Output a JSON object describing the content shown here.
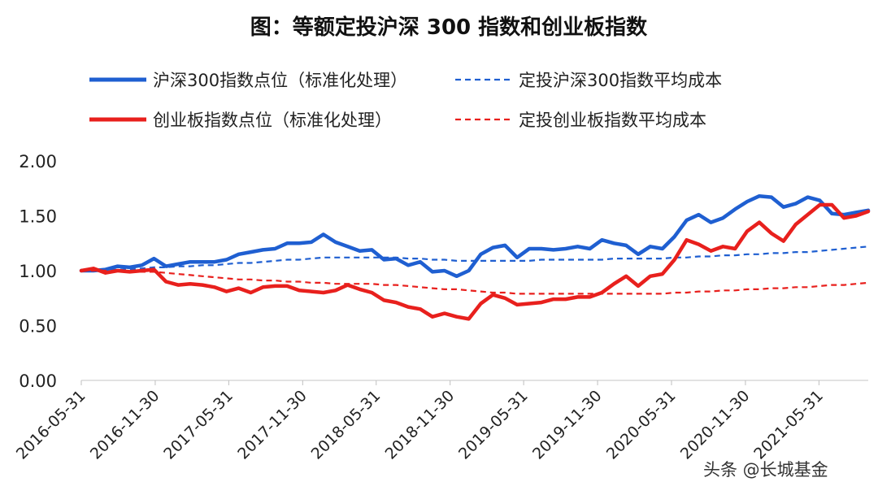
{
  "chart_data": {
    "type": "line",
    "title": "图：等额定投沪深 300 指数和创业板指数",
    "ylim": [
      0,
      2.0
    ],
    "yticks": [
      "2.00",
      "1.50",
      "1.00",
      "0.50",
      "0.00"
    ],
    "xticks": [
      "2016-05-31",
      "2016-11-30",
      "2017-05-31",
      "2017-11-30",
      "2018-05-31",
      "2018-11-30",
      "2019-05-31",
      "2019-11-30",
      "2020-05-31",
      "2020-11-30",
      "2021-05-31"
    ],
    "x_start": "2016-05-31",
    "x_end": "2021-09-30",
    "legend_position": "top",
    "series": [
      {
        "name": "沪深300指数点位（标准化处理）",
        "color": "#1f5fd1",
        "style": "solid",
        "values": [
          1.0,
          1.0,
          1.01,
          1.04,
          1.03,
          1.05,
          1.11,
          1.04,
          1.06,
          1.08,
          1.08,
          1.08,
          1.1,
          1.15,
          1.17,
          1.19,
          1.2,
          1.25,
          1.25,
          1.26,
          1.33,
          1.26,
          1.22,
          1.18,
          1.19,
          1.1,
          1.11,
          1.05,
          1.08,
          0.99,
          1.0,
          0.95,
          1.0,
          1.15,
          1.21,
          1.23,
          1.12,
          1.2,
          1.2,
          1.19,
          1.2,
          1.22,
          1.2,
          1.28,
          1.25,
          1.23,
          1.15,
          1.22,
          1.2,
          1.31,
          1.46,
          1.51,
          1.44,
          1.48,
          1.56,
          1.63,
          1.68,
          1.67,
          1.58,
          1.61,
          1.67,
          1.64,
          1.52,
          1.51,
          1.53,
          1.55
        ]
      },
      {
        "name": "定投沪深300指数平均成本",
        "color": "#1f5fd1",
        "style": "dashed",
        "values": [
          1.0,
          1.0,
          1.0,
          1.01,
          1.01,
          1.02,
          1.03,
          1.03,
          1.04,
          1.04,
          1.05,
          1.05,
          1.06,
          1.07,
          1.07,
          1.08,
          1.09,
          1.1,
          1.1,
          1.11,
          1.12,
          1.12,
          1.12,
          1.12,
          1.12,
          1.12,
          1.12,
          1.11,
          1.11,
          1.1,
          1.1,
          1.09,
          1.09,
          1.09,
          1.09,
          1.09,
          1.09,
          1.09,
          1.1,
          1.1,
          1.1,
          1.1,
          1.1,
          1.1,
          1.11,
          1.11,
          1.11,
          1.11,
          1.11,
          1.12,
          1.12,
          1.13,
          1.13,
          1.14,
          1.14,
          1.15,
          1.15,
          1.16,
          1.16,
          1.17,
          1.17,
          1.18,
          1.19,
          1.2,
          1.21,
          1.22
        ]
      },
      {
        "name": "创业板指数点位（标准化处理）",
        "color": "#e8201d",
        "style": "solid",
        "values": [
          1.0,
          1.02,
          0.98,
          1.0,
          0.99,
          1.0,
          1.01,
          0.9,
          0.87,
          0.88,
          0.87,
          0.85,
          0.81,
          0.84,
          0.8,
          0.85,
          0.86,
          0.86,
          0.82,
          0.81,
          0.8,
          0.82,
          0.87,
          0.83,
          0.8,
          0.73,
          0.71,
          0.67,
          0.65,
          0.58,
          0.61,
          0.58,
          0.56,
          0.7,
          0.78,
          0.75,
          0.69,
          0.7,
          0.71,
          0.74,
          0.74,
          0.76,
          0.76,
          0.8,
          0.88,
          0.95,
          0.86,
          0.95,
          0.97,
          1.1,
          1.28,
          1.24,
          1.18,
          1.22,
          1.2,
          1.36,
          1.44,
          1.34,
          1.27,
          1.42,
          1.51,
          1.6,
          1.6,
          1.48,
          1.5,
          1.54
        ]
      },
      {
        "name": "定投创业板指数平均成本",
        "color": "#e8201d",
        "style": "dashed",
        "values": [
          1.0,
          1.0,
          1.0,
          0.99,
          0.99,
          0.99,
          0.99,
          0.98,
          0.97,
          0.96,
          0.95,
          0.94,
          0.93,
          0.92,
          0.92,
          0.91,
          0.91,
          0.9,
          0.9,
          0.89,
          0.89,
          0.88,
          0.88,
          0.88,
          0.88,
          0.87,
          0.87,
          0.86,
          0.85,
          0.84,
          0.83,
          0.83,
          0.82,
          0.81,
          0.8,
          0.8,
          0.79,
          0.79,
          0.79,
          0.79,
          0.79,
          0.79,
          0.79,
          0.79,
          0.79,
          0.79,
          0.79,
          0.79,
          0.79,
          0.8,
          0.8,
          0.81,
          0.81,
          0.82,
          0.82,
          0.83,
          0.83,
          0.84,
          0.84,
          0.85,
          0.85,
          0.86,
          0.87,
          0.87,
          0.88,
          0.89
        ]
      }
    ]
  },
  "watermark": "头条 @长城基金"
}
